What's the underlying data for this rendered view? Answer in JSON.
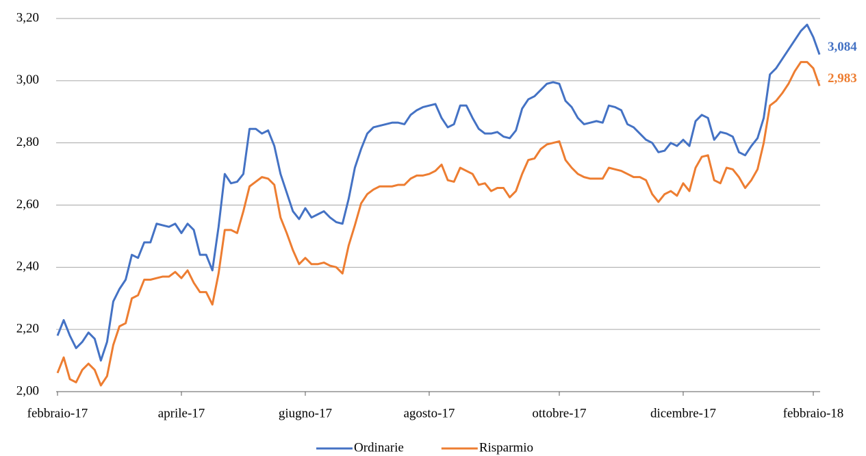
{
  "chart_data": {
    "type": "line",
    "categories": [
      "febbraio-17",
      null,
      null,
      null,
      null,
      null,
      null,
      null,
      null,
      null,
      null,
      null,
      null,
      null,
      null,
      null,
      null,
      null,
      null,
      null,
      "aprile-17",
      null,
      null,
      null,
      null,
      null,
      null,
      null,
      null,
      null,
      null,
      null,
      null,
      null,
      null,
      null,
      null,
      null,
      null,
      null,
      "giugno-17",
      null,
      null,
      null,
      null,
      null,
      null,
      null,
      null,
      null,
      null,
      null,
      null,
      null,
      null,
      null,
      null,
      null,
      null,
      null,
      "agosto-17",
      null,
      null,
      null,
      null,
      null,
      null,
      null,
      null,
      null,
      null,
      null,
      null,
      null,
      null,
      null,
      null,
      null,
      null,
      null,
      null,
      "ottobre-17",
      null,
      null,
      null,
      null,
      null,
      null,
      null,
      null,
      null,
      null,
      null,
      null,
      null,
      null,
      null,
      null,
      null,
      null,
      null,
      "dicembre-17",
      null,
      null,
      null,
      null,
      null,
      null,
      null,
      null,
      null,
      null,
      null,
      null,
      null,
      null,
      null,
      null,
      null,
      null,
      null,
      null,
      "febbraio-18",
      null
    ],
    "series": [
      {
        "name": "Ordinarie",
        "color": "#4472c4",
        "values": [
          2.18,
          2.23,
          2.18,
          2.14,
          2.16,
          2.19,
          2.17,
          2.1,
          2.16,
          2.29,
          2.33,
          2.36,
          2.44,
          2.43,
          2.48,
          2.48,
          2.54,
          2.535,
          2.53,
          2.54,
          2.51,
          2.54,
          2.52,
          2.44,
          2.44,
          2.39,
          2.53,
          2.7,
          2.67,
          2.675,
          2.7,
          2.845,
          2.845,
          2.83,
          2.84,
          2.79,
          2.7,
          2.64,
          2.58,
          2.555,
          2.59,
          2.56,
          2.57,
          2.58,
          2.56,
          2.545,
          2.54,
          2.62,
          2.72,
          2.78,
          2.83,
          2.85,
          2.855,
          2.86,
          2.865,
          2.865,
          2.86,
          2.89,
          2.905,
          2.915,
          2.92,
          2.925,
          2.88,
          2.85,
          2.86,
          2.92,
          2.92,
          2.88,
          2.845,
          2.83,
          2.83,
          2.835,
          2.82,
          2.815,
          2.84,
          2.91,
          2.94,
          2.95,
          2.97,
          2.99,
          2.995,
          2.99,
          2.935,
          2.915,
          2.88,
          2.86,
          2.865,
          2.87,
          2.865,
          2.92,
          2.915,
          2.905,
          2.86,
          2.85,
          2.83,
          2.81,
          2.8,
          2.77,
          2.775,
          2.8,
          2.79,
          2.81,
          2.79,
          2.87,
          2.89,
          2.88,
          2.81,
          2.835,
          2.83,
          2.82,
          2.77,
          2.76,
          2.79,
          2.815,
          2.88,
          3.02,
          3.04,
          3.07,
          3.1,
          3.13,
          3.16,
          3.18,
          3.14,
          3.084
        ],
        "value_labels": [
          null,
          null,
          null,
          null,
          null,
          null,
          null,
          null,
          null,
          null,
          null,
          null,
          null,
          null,
          null,
          null,
          null,
          null,
          null,
          null,
          null,
          null,
          null,
          null,
          null,
          null,
          null,
          null,
          null,
          null,
          null,
          null,
          null,
          null,
          null,
          null,
          null,
          null,
          null,
          null,
          null,
          null,
          null,
          null,
          null,
          null,
          null,
          null,
          null,
          null,
          null,
          null,
          null,
          null,
          null,
          null,
          null,
          null,
          null,
          null,
          null,
          null,
          null,
          null,
          null,
          null,
          null,
          null,
          null,
          null,
          null,
          null,
          null,
          null,
          null,
          null,
          null,
          null,
          null,
          null,
          null,
          null,
          null,
          null,
          null,
          null,
          null,
          null,
          null,
          null,
          null,
          null,
          null,
          null,
          null,
          null,
          null,
          null,
          null,
          null,
          null,
          null,
          null,
          null,
          null,
          null,
          null,
          null,
          null,
          null,
          null,
          null,
          null,
          null,
          null,
          null,
          null,
          null,
          null,
          null,
          null,
          null,
          null,
          "3,084"
        ]
      },
      {
        "name": "Risparmio",
        "color": "#ed7d31",
        "values": [
          2.06,
          2.11,
          2.04,
          2.03,
          2.07,
          2.09,
          2.07,
          2.02,
          2.05,
          2.15,
          2.21,
          2.22,
          2.3,
          2.31,
          2.36,
          2.36,
          2.365,
          2.37,
          2.37,
          2.385,
          2.365,
          2.39,
          2.35,
          2.32,
          2.32,
          2.28,
          2.38,
          2.52,
          2.52,
          2.51,
          2.58,
          2.66,
          2.675,
          2.69,
          2.685,
          2.665,
          2.56,
          2.51,
          2.455,
          2.41,
          2.43,
          2.41,
          2.41,
          2.415,
          2.405,
          2.4,
          2.38,
          2.47,
          2.535,
          2.605,
          2.635,
          2.65,
          2.66,
          2.66,
          2.66,
          2.665,
          2.665,
          2.685,
          2.695,
          2.695,
          2.7,
          2.71,
          2.73,
          2.68,
          2.675,
          2.72,
          2.71,
          2.7,
          2.665,
          2.67,
          2.645,
          2.655,
          2.655,
          2.625,
          2.645,
          2.7,
          2.745,
          2.75,
          2.78,
          2.795,
          2.8,
          2.805,
          2.745,
          2.72,
          2.7,
          2.69,
          2.685,
          2.685,
          2.685,
          2.72,
          2.715,
          2.71,
          2.7,
          2.69,
          2.69,
          2.68,
          2.635,
          2.61,
          2.635,
          2.645,
          2.63,
          2.67,
          2.645,
          2.72,
          2.755,
          2.76,
          2.68,
          2.67,
          2.72,
          2.715,
          2.69,
          2.655,
          2.68,
          2.715,
          2.8,
          2.92,
          2.935,
          2.96,
          2.99,
          3.03,
          3.06,
          3.06,
          3.04,
          2.983
        ],
        "value_labels": [
          null,
          null,
          null,
          null,
          null,
          null,
          null,
          null,
          null,
          null,
          null,
          null,
          null,
          null,
          null,
          null,
          null,
          null,
          null,
          null,
          null,
          null,
          null,
          null,
          null,
          null,
          null,
          null,
          null,
          null,
          null,
          null,
          null,
          null,
          null,
          null,
          null,
          null,
          null,
          null,
          null,
          null,
          null,
          null,
          null,
          null,
          null,
          null,
          null,
          null,
          null,
          null,
          null,
          null,
          null,
          null,
          null,
          null,
          null,
          null,
          null,
          null,
          null,
          null,
          null,
          null,
          null,
          null,
          null,
          null,
          null,
          null,
          null,
          null,
          null,
          null,
          null,
          null,
          null,
          null,
          null,
          null,
          null,
          null,
          null,
          null,
          null,
          null,
          null,
          null,
          null,
          null,
          null,
          null,
          null,
          null,
          null,
          null,
          null,
          null,
          null,
          null,
          null,
          null,
          null,
          null,
          null,
          null,
          null,
          null,
          null,
          null,
          null,
          null,
          null,
          null,
          null,
          null,
          null,
          null,
          null,
          null,
          null,
          "2,983"
        ]
      }
    ],
    "ylim": [
      2.0,
      3.2
    ],
    "yticks": [
      {
        "value": 2.0,
        "label": "2,00"
      },
      {
        "value": 2.2,
        "label": "2,20"
      },
      {
        "value": 2.4,
        "label": "2,40"
      },
      {
        "value": 2.6,
        "label": "2,60"
      },
      {
        "value": 2.8,
        "label": "2,80"
      },
      {
        "value": 3.0,
        "label": "3,00"
      },
      {
        "value": 3.2,
        "label": "3,20"
      }
    ],
    "grid": true,
    "legend": "bottom"
  }
}
